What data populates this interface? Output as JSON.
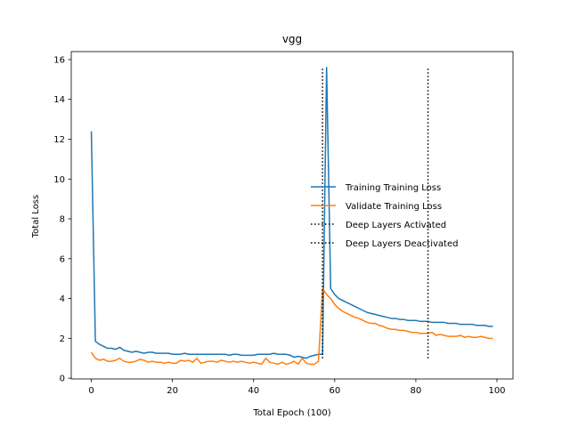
{
  "chart_data": {
    "type": "line",
    "title": "vgg",
    "xlabel": "Total Epoch (100)",
    "ylabel": "Total Loss",
    "xlim": [
      -4.95,
      103.95
    ],
    "ylim": [
      -0.04,
      16.4
    ],
    "xticks": [
      0,
      20,
      40,
      60,
      80,
      100
    ],
    "yticks": [
      0,
      2,
      4,
      6,
      8,
      10,
      12,
      14,
      16
    ],
    "grid": false,
    "legend_position": "center-right",
    "series": [
      {
        "name": "Training Training Loss",
        "color": "#1f77b4",
        "style": "solid",
        "x": [
          0,
          1,
          2,
          3,
          4,
          5,
          6,
          7,
          8,
          9,
          10,
          11,
          12,
          13,
          14,
          15,
          16,
          17,
          18,
          19,
          20,
          21,
          22,
          23,
          24,
          25,
          26,
          27,
          28,
          29,
          30,
          31,
          32,
          33,
          34,
          35,
          36,
          37,
          38,
          39,
          40,
          41,
          42,
          43,
          44,
          45,
          46,
          47,
          48,
          49,
          50,
          51,
          52,
          53,
          54,
          55,
          56,
          57,
          58,
          59,
          60,
          61,
          62,
          63,
          64,
          65,
          66,
          67,
          68,
          69,
          70,
          71,
          72,
          73,
          74,
          75,
          76,
          77,
          78,
          79,
          80,
          81,
          82,
          83,
          84,
          85,
          86,
          87,
          88,
          89,
          90,
          91,
          92,
          93,
          94,
          95,
          96,
          97,
          98,
          99
        ],
        "y": [
          12.4,
          1.85,
          1.7,
          1.6,
          1.5,
          1.5,
          1.45,
          1.55,
          1.4,
          1.35,
          1.3,
          1.35,
          1.3,
          1.25,
          1.3,
          1.3,
          1.25,
          1.25,
          1.25,
          1.25,
          1.2,
          1.2,
          1.2,
          1.25,
          1.2,
          1.2,
          1.2,
          1.2,
          1.2,
          1.2,
          1.2,
          1.2,
          1.2,
          1.2,
          1.15,
          1.2,
          1.2,
          1.15,
          1.15,
          1.15,
          1.15,
          1.2,
          1.2,
          1.2,
          1.2,
          1.25,
          1.2,
          1.2,
          1.2,
          1.15,
          1.05,
          1.1,
          1.05,
          1.0,
          1.1,
          1.15,
          1.2,
          1.2,
          15.6,
          4.5,
          4.2,
          4.0,
          3.9,
          3.8,
          3.7,
          3.6,
          3.5,
          3.4,
          3.3,
          3.25,
          3.2,
          3.15,
          3.1,
          3.05,
          3.0,
          3.0,
          2.95,
          2.95,
          2.9,
          2.9,
          2.9,
          2.85,
          2.85,
          2.85,
          2.8,
          2.8,
          2.8,
          2.8,
          2.75,
          2.75,
          2.75,
          2.7,
          2.7,
          2.7,
          2.7,
          2.65,
          2.65,
          2.65,
          2.6,
          2.6
        ]
      },
      {
        "name": "Validate Training Loss",
        "color": "#ff7f0e",
        "style": "solid",
        "x": [
          0,
          1,
          2,
          3,
          4,
          5,
          6,
          7,
          8,
          9,
          10,
          11,
          12,
          13,
          14,
          15,
          16,
          17,
          18,
          19,
          20,
          21,
          22,
          23,
          24,
          25,
          26,
          27,
          28,
          29,
          30,
          31,
          32,
          33,
          34,
          35,
          36,
          37,
          38,
          39,
          40,
          41,
          42,
          43,
          44,
          45,
          46,
          47,
          48,
          49,
          50,
          51,
          52,
          53,
          54,
          55,
          56,
          57,
          58,
          59,
          60,
          61,
          62,
          63,
          64,
          65,
          66,
          67,
          68,
          69,
          70,
          71,
          72,
          73,
          74,
          75,
          76,
          77,
          78,
          79,
          80,
          81,
          82,
          83,
          84,
          85,
          86,
          87,
          88,
          89,
          90,
          91,
          92,
          93,
          94,
          95,
          96,
          97,
          98,
          99
        ],
        "y": [
          1.3,
          1.0,
          0.9,
          0.95,
          0.85,
          0.85,
          0.9,
          1.0,
          0.85,
          0.8,
          0.8,
          0.85,
          0.95,
          0.9,
          0.8,
          0.85,
          0.8,
          0.8,
          0.75,
          0.8,
          0.75,
          0.75,
          0.9,
          0.85,
          0.9,
          0.8,
          1.0,
          0.75,
          0.8,
          0.85,
          0.85,
          0.8,
          0.9,
          0.85,
          0.8,
          0.85,
          0.8,
          0.85,
          0.8,
          0.75,
          0.8,
          0.75,
          0.7,
          1.0,
          0.8,
          0.75,
          0.7,
          0.8,
          0.7,
          0.75,
          0.85,
          0.7,
          1.0,
          0.75,
          0.7,
          0.7,
          0.85,
          4.5,
          4.2,
          4.0,
          3.7,
          3.5,
          3.35,
          3.25,
          3.15,
          3.05,
          3.0,
          2.9,
          2.8,
          2.75,
          2.75,
          2.65,
          2.6,
          2.5,
          2.45,
          2.45,
          2.4,
          2.4,
          2.35,
          2.3,
          2.3,
          2.25,
          2.25,
          2.25,
          2.3,
          2.15,
          2.2,
          2.15,
          2.1,
          2.1,
          2.1,
          2.15,
          2.05,
          2.1,
          2.05,
          2.05,
          2.1,
          2.05,
          2.0,
          2.0
        ]
      },
      {
        "name": "Deep Layers Activated",
        "color": "#000000",
        "style": "dotted",
        "x": [
          57,
          57
        ],
        "y": [
          1.0,
          15.6
        ]
      },
      {
        "name": "Deep Layers Deactivated",
        "color": "#000000",
        "style": "dotted",
        "x": [
          83,
          83
        ],
        "y": [
          1.0,
          15.6
        ]
      }
    ]
  }
}
